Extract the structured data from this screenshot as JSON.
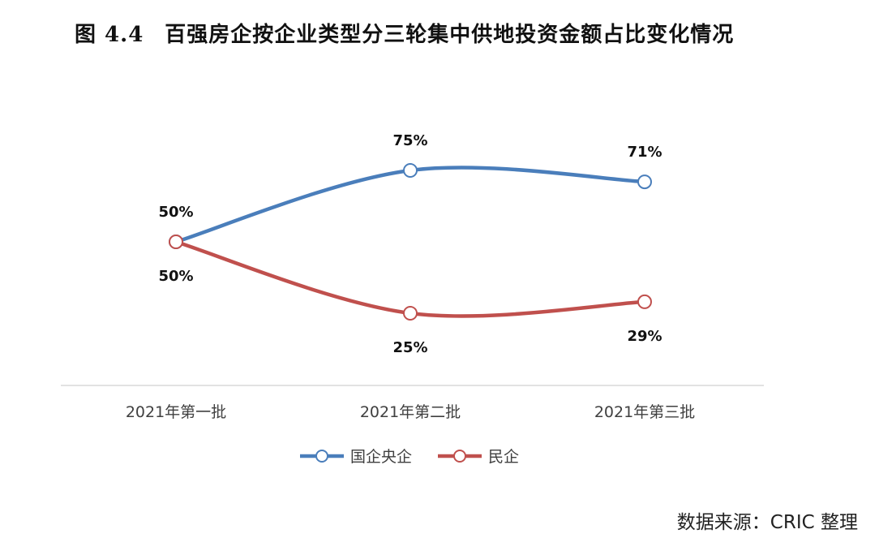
{
  "figure": {
    "number": "图 4.4",
    "title": "百强房企按企业类型分三轮集中供地投资金额占比变化情况"
  },
  "source_note": "数据来源：CRIC 整理",
  "chart_data": {
    "type": "line",
    "smooth": true,
    "categories": [
      "2021年第一批",
      "2021年第二批",
      "2021年第三批"
    ],
    "ylim": [
      0,
      100
    ],
    "grid": false,
    "legend_position": "bottom",
    "series": [
      {
        "name": "国企央企",
        "values": [
          50,
          75,
          71
        ],
        "labels": [
          "50%",
          "75%",
          "71%"
        ],
        "color": "#4a7ebb",
        "label_position": "above"
      },
      {
        "name": "民企",
        "values": [
          50,
          25,
          29
        ],
        "labels": [
          "50%",
          "25%",
          "29%"
        ],
        "color": "#c0504d",
        "label_position": "below"
      }
    ]
  }
}
